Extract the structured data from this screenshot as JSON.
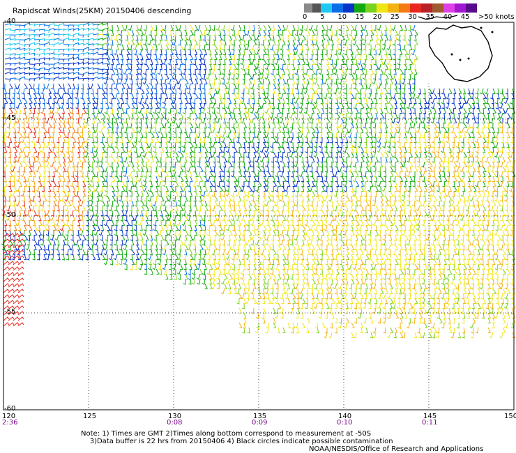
{
  "title": "Rapidscat Winds(25KM) 20150406 descending",
  "colorbar": {
    "labels": [
      "0",
      "5",
      "10",
      "15",
      "20",
      "25",
      "30",
      "35",
      "40",
      "45"
    ],
    "units": ">50 knots",
    "colors": [
      "#8a8a8a",
      "#555555",
      "#1ec8f0",
      "#0b6ee6",
      "#0733c9",
      "#12a80f",
      "#7ad21e",
      "#f0e614",
      "#f4b212",
      "#f47a12",
      "#e8281e",
      "#b8202a",
      "#a05a32",
      "#e040e8",
      "#a018d0",
      "#5a0a8c"
    ]
  },
  "map": {
    "lon_ticks": [
      "120",
      "125",
      "130",
      "135",
      "140",
      "145",
      "150"
    ],
    "lat_ticks": [
      "-40",
      "-45",
      "-50",
      "-55",
      "-60"
    ],
    "time_labels": [
      {
        "lon": 120,
        "text": "2:36"
      },
      {
        "lon": 130,
        "text": "0:08"
      },
      {
        "lon": 135,
        "text": "0:09"
      },
      {
        "lon": 140,
        "text": "0:10"
      },
      {
        "lon": 145,
        "text": "0:11"
      }
    ],
    "land_feature": "Tasmania"
  },
  "notes": {
    "line1": "Note: 1) Times are GMT 2)Times along bottom correspond to measurement at -50S",
    "line2": "3)Data buffer is 22 hrs from 20150406 4) Black circles indicate possible contamination"
  },
  "credit": "NOAA/NESDIS/Office of Research and Applications"
}
